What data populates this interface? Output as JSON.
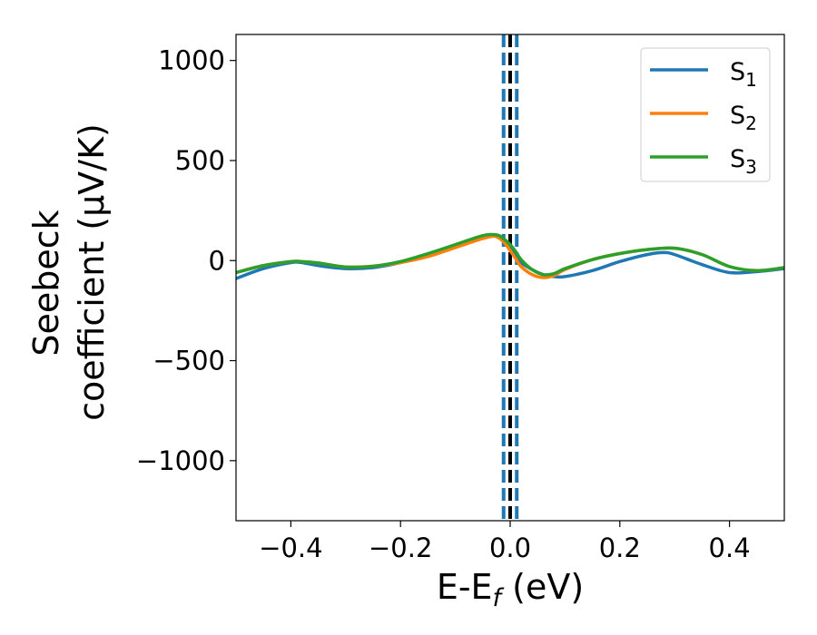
{
  "chart_data": {
    "type": "line",
    "title": "",
    "xlabel": "E-E_f (eV)",
    "xlabel_main": "E-E",
    "xlabel_sub": "f",
    "xlabel_tail": " (eV)",
    "ylabel_line1": "Seebeck",
    "ylabel_line2": "coefficient  (μV/K)",
    "xlim": [
      -0.5,
      0.5
    ],
    "ylim": [
      -1300,
      1130
    ],
    "xticks": [
      -0.4,
      -0.2,
      0.0,
      0.2,
      0.4
    ],
    "xtick_labels": [
      "−0.4",
      "−0.2",
      "0.0",
      "0.2",
      "0.4"
    ],
    "yticks": [
      1000,
      500,
      0,
      -500,
      -1000
    ],
    "ytick_labels": [
      "1000",
      "500",
      "0",
      "−500",
      "−1000"
    ],
    "legend_position": "top-right",
    "vlines": [
      {
        "x": -0.012,
        "color": "#1f77b4",
        "style": "dashed"
      },
      {
        "x": 0.0,
        "color": "#000000",
        "style": "dashed"
      },
      {
        "x": 0.012,
        "color": "#1f77b4",
        "style": "dashed"
      }
    ],
    "series": [
      {
        "name": "S",
        "sub": "1",
        "color": "#1f77b4",
        "x": [
          -0.5,
          -0.45,
          -0.4,
          -0.38,
          -0.35,
          -0.3,
          -0.25,
          -0.2,
          -0.15,
          -0.1,
          -0.05,
          -0.03,
          -0.02,
          -0.01,
          0.0,
          0.01,
          0.02,
          0.04,
          0.06,
          0.08,
          0.1,
          0.15,
          0.2,
          0.25,
          0.28,
          0.3,
          0.35,
          0.4,
          0.45,
          0.5
        ],
        "y": [
          -90,
          -40,
          -10,
          -10,
          -25,
          -40,
          -35,
          -10,
          30,
          75,
          120,
          128,
          118,
          95,
          65,
          30,
          -10,
          -45,
          -70,
          -80,
          -80,
          -50,
          -5,
          30,
          40,
          30,
          -20,
          -60,
          -55,
          -40
        ]
      },
      {
        "name": "S",
        "sub": "2",
        "color": "#ff7f0e",
        "x": [
          -0.5,
          -0.45,
          -0.4,
          -0.38,
          -0.35,
          -0.3,
          -0.25,
          -0.2,
          -0.15,
          -0.1,
          -0.05,
          -0.03,
          -0.02,
          -0.01,
          0.0,
          0.01,
          0.02,
          0.04,
          0.06,
          0.08,
          0.1,
          0.15,
          0.2,
          0.25,
          0.3,
          0.35,
          0.4,
          0.45,
          0.5
        ],
        "y": [
          -60,
          -25,
          -5,
          -5,
          -12,
          -32,
          -28,
          -10,
          20,
          65,
          110,
          122,
          112,
          88,
          50,
          10,
          -30,
          -70,
          -85,
          -75,
          -45,
          5,
          35,
          55,
          62,
          30,
          -30,
          -50,
          -35
        ]
      },
      {
        "name": "S",
        "sub": "3",
        "color": "#2ca02c",
        "x": [
          -0.5,
          -0.45,
          -0.4,
          -0.38,
          -0.35,
          -0.3,
          -0.25,
          -0.2,
          -0.15,
          -0.1,
          -0.05,
          -0.03,
          -0.02,
          -0.01,
          0.0,
          0.01,
          0.02,
          0.04,
          0.06,
          0.08,
          0.1,
          0.15,
          0.2,
          0.25,
          0.3,
          0.35,
          0.4,
          0.45,
          0.5
        ],
        "y": [
          -60,
          -25,
          -5,
          -5,
          -12,
          -32,
          -28,
          -5,
          35,
          80,
          125,
          130,
          125,
          105,
          80,
          45,
          5,
          -45,
          -70,
          -65,
          -40,
          5,
          35,
          55,
          62,
          30,
          -30,
          -50,
          -35
        ]
      }
    ]
  }
}
